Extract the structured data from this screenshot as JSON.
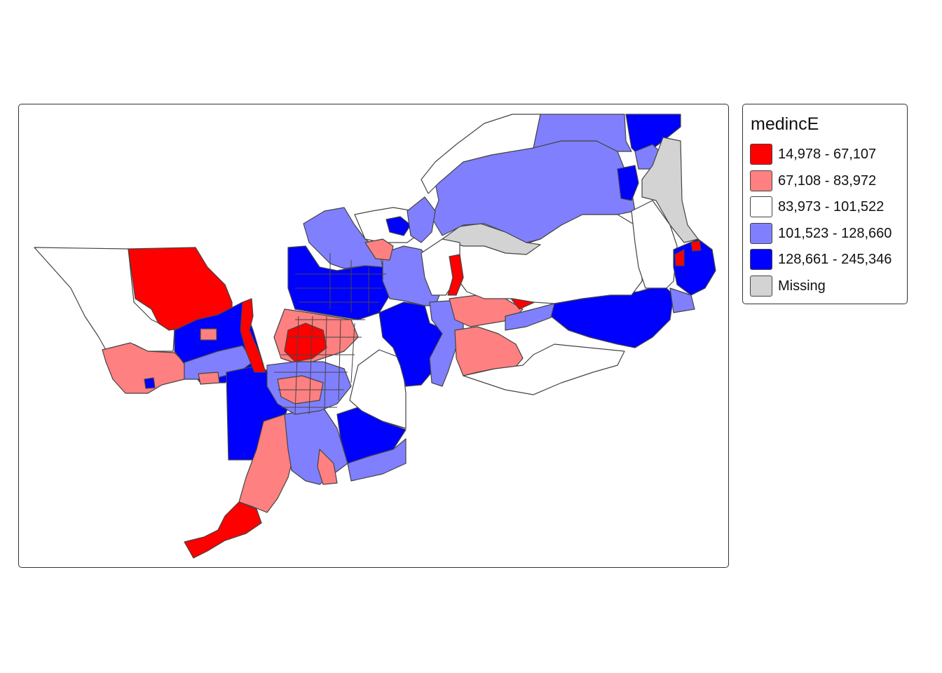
{
  "legend": {
    "title": "medincE",
    "items": [
      {
        "label": "14,978 - 67,107",
        "color": "#ff0000"
      },
      {
        "label": "67,108 - 83,972",
        "color": "#ff8080"
      },
      {
        "label": "83,973 - 101,522",
        "color": "#ffffff"
      },
      {
        "label": "101,523 - 128,660",
        "color": "#8080ff"
      },
      {
        "label": "128,661 - 245,346",
        "color": "#0000ff"
      },
      {
        "label": "Missing",
        "color": "#d3d3d3"
      }
    ]
  }
}
